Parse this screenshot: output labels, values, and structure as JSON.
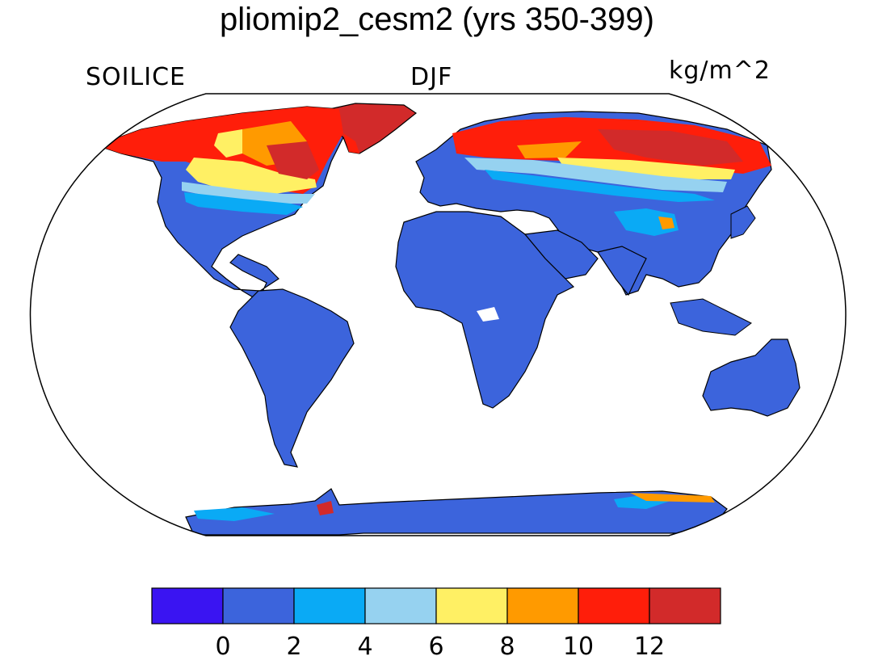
{
  "title": "pliomip2_cesm2 (yrs 350-399)",
  "variable": "SOILICE",
  "season": "DJF",
  "units": "kg/m^2",
  "colors": {
    "ocean": "#ffffff",
    "land_default": "#3c64dc",
    "outline": "#000000"
  },
  "legend": {
    "bins": [
      {
        "color": "#3a14f2"
      },
      {
        "color": "#3c64dc"
      },
      {
        "color": "#0aaaf5"
      },
      {
        "color": "#96d2f0"
      },
      {
        "color": "#fff064"
      },
      {
        "color": "#ff9a00"
      },
      {
        "color": "#ff1e0a"
      },
      {
        "color": "#d22a2a"
      }
    ],
    "ticks": [
      "0",
      "2",
      "4",
      "6",
      "8",
      "10",
      "12"
    ]
  }
}
